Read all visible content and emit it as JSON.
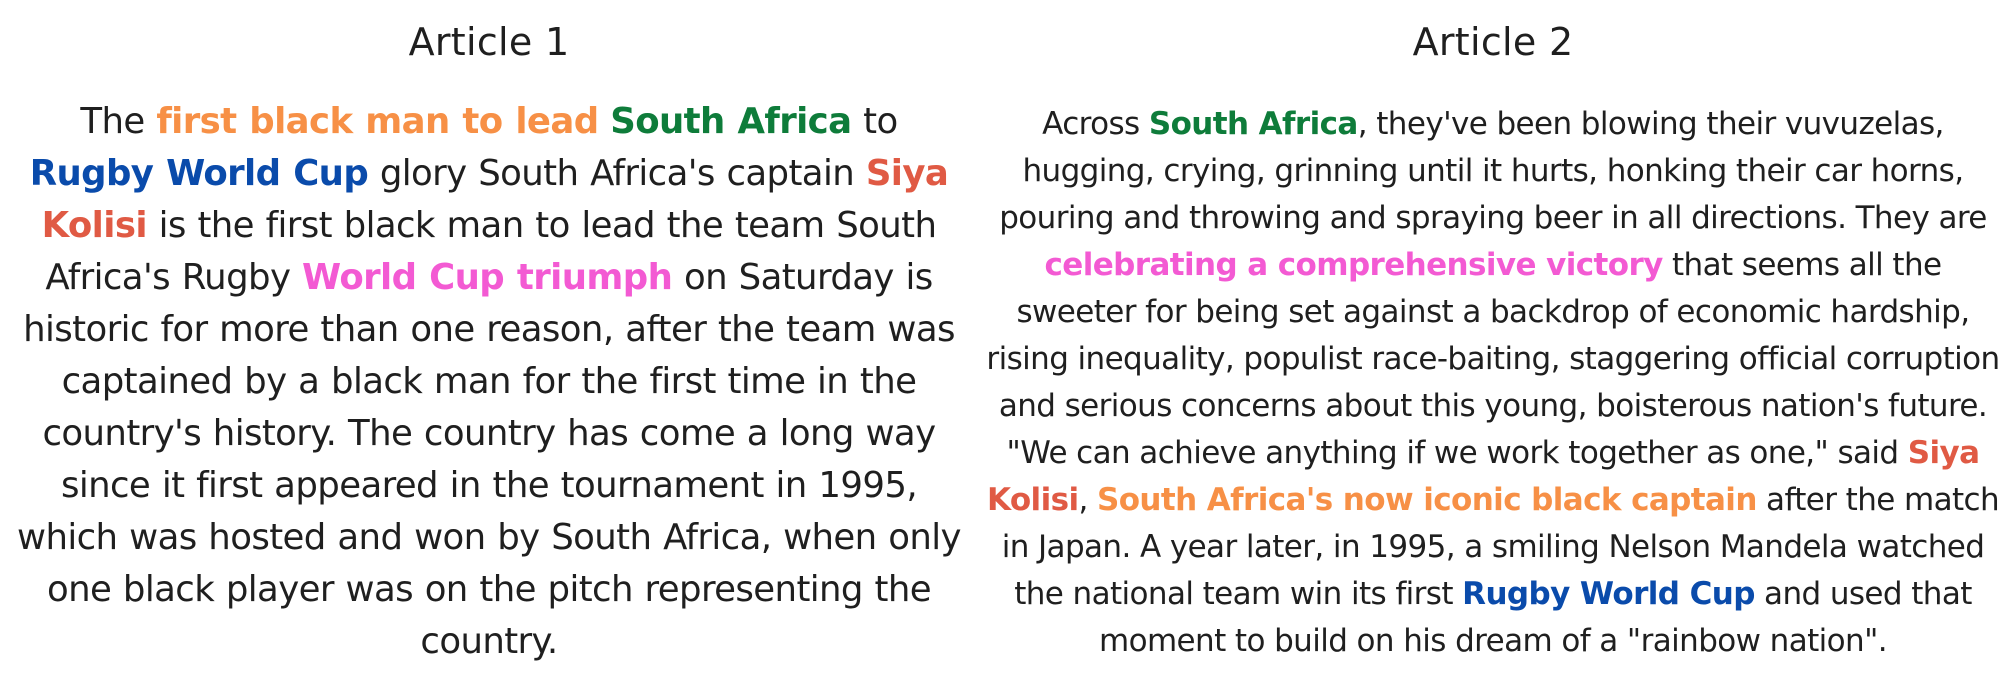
{
  "colors": {
    "orange": "#f79046",
    "green": "#0e7c3a",
    "blue": "#0a4bab",
    "red": "#e05a44",
    "pink": "#f35ad3",
    "text": "#1f1f1f"
  },
  "article1": {
    "title": "Article 1",
    "segments": [
      {
        "text": "The "
      },
      {
        "text": "first black man to lead",
        "color": "orange"
      },
      {
        "text": " "
      },
      {
        "text": "South Africa",
        "color": "green"
      },
      {
        "text": " to "
      },
      {
        "text": "Rugby World Cup",
        "color": "blue"
      },
      {
        "text": " glory South Africa's captain "
      },
      {
        "text": "Siya Kolisi",
        "color": "red"
      },
      {
        "text": " is the first black man to lead the team South Africa's Rugby "
      },
      {
        "text": "World Cup triumph",
        "color": "pink"
      },
      {
        "text": " on Saturday is historic for more than one reason, after the team was captained by a black man for the first time in the country's history. The country has come a long way since it first appeared in the tournament in 1995, which was hosted and won by South Africa, when only one black player was on the pitch representing the country."
      }
    ]
  },
  "article2": {
    "title": "Article 2",
    "segments": [
      {
        "text": "Across "
      },
      {
        "text": "South Africa",
        "color": "green"
      },
      {
        "text": ", they've been blowing their vuvuzelas, hugging, crying, grinning until it hurts, honking their car horns, pouring and throwing and spraying beer in all directions. They are "
      },
      {
        "text": "celebrating a comprehensive victory",
        "color": "pink"
      },
      {
        "text": " that seems all the sweeter for being set against a backdrop of economic hardship, rising inequality, populist race-baiting, staggering official corruption and serious concerns about this young, boisterous nation's future. \"We can achieve anything if we work together as one,\" said "
      },
      {
        "text": "Siya Kolisi",
        "color": "red"
      },
      {
        "text": ", "
      },
      {
        "text": "South Africa's now iconic black captain",
        "color": "orange"
      },
      {
        "text": " after the match in Japan. A year later, in 1995, a smiling Nelson Mandela watched the national team win its first "
      },
      {
        "text": "Rugby World Cup",
        "color": "blue"
      },
      {
        "text": " and used that moment to build on his dream of a \"rainbow nation\"."
      }
    ]
  }
}
